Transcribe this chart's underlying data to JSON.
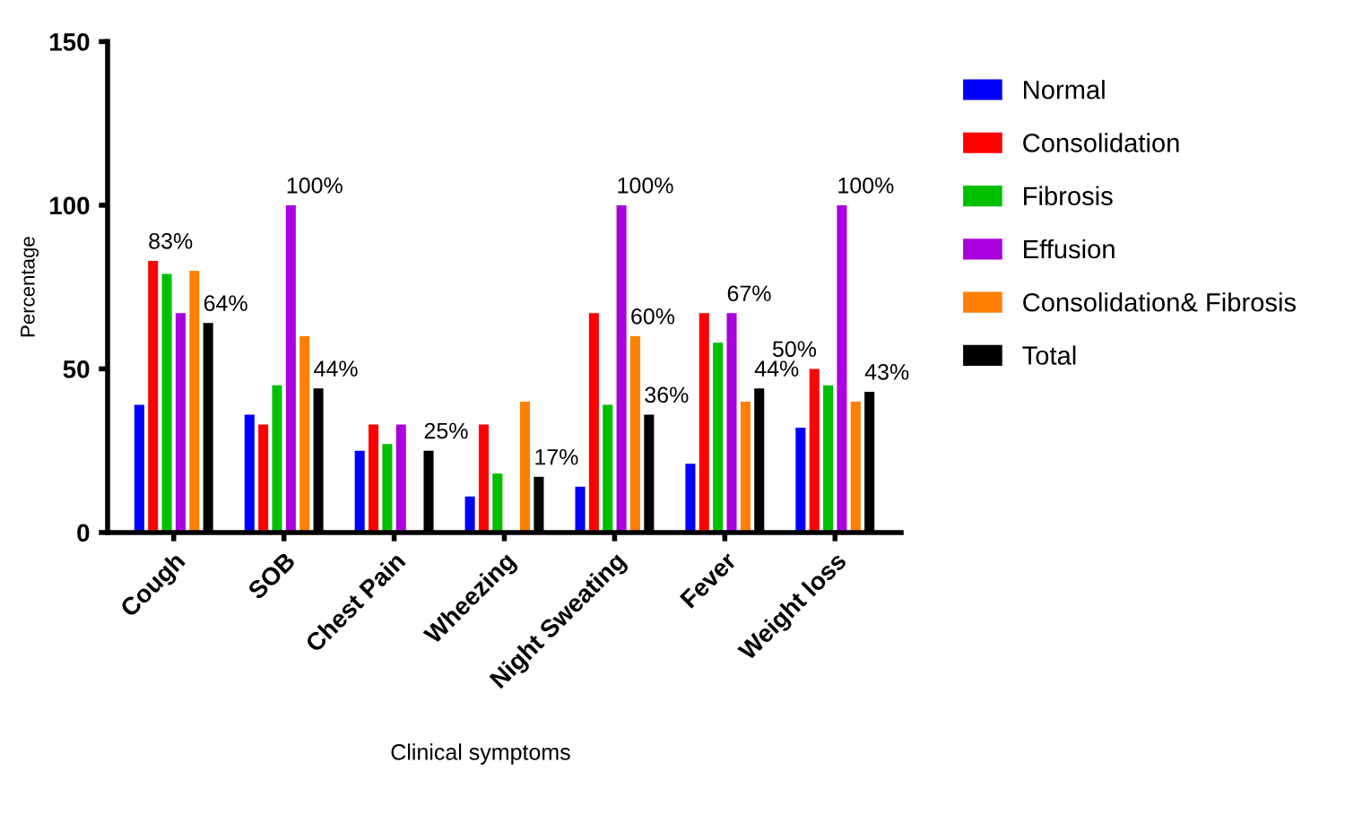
{
  "chart_data": {
    "type": "bar",
    "xlabel": "Clinical symptoms",
    "ylabel": "Percentage",
    "categories": [
      "Cough",
      "SOB",
      "Chest Pain",
      "Wheezing",
      "Night Sweating",
      "Fever",
      "Weight loss"
    ],
    "ylim": [
      0,
      150
    ],
    "yticks": [
      0,
      50,
      100,
      150
    ],
    "grid": false,
    "legend": "right",
    "series": [
      {
        "name": "Normal",
        "color": "#0000ff",
        "values": [
          39,
          36,
          25,
          11,
          14,
          21,
          32
        ]
      },
      {
        "name": "Consolidation",
        "color": "#ff0000",
        "values": [
          83,
          33,
          33,
          33,
          67,
          67,
          50
        ],
        "value_labels": [
          "83%",
          null,
          null,
          null,
          null,
          null,
          "50%"
        ]
      },
      {
        "name": "Fibrosis",
        "color": "#00c000",
        "values": [
          79,
          45,
          27,
          18,
          39,
          58,
          45
        ]
      },
      {
        "name": "Effusion",
        "color": "#aa00dd",
        "values": [
          67,
          100,
          33,
          0,
          100,
          67,
          100
        ],
        "value_labels": [
          null,
          "100%",
          null,
          null,
          "100%",
          "67%",
          "100%"
        ]
      },
      {
        "name": "Consolidation& Fibrosis",
        "color": "#ff8000",
        "values": [
          80,
          60,
          0,
          40,
          60,
          40,
          40
        ],
        "value_labels": [
          null,
          null,
          null,
          null,
          "60%",
          null,
          null
        ]
      },
      {
        "name": "Total",
        "color": "#000000",
        "values": [
          64,
          44,
          25,
          17,
          36,
          44,
          43
        ],
        "value_labels": [
          "64%",
          "44%",
          "25%",
          "17%",
          "36%",
          "44%",
          "43%"
        ]
      }
    ]
  }
}
